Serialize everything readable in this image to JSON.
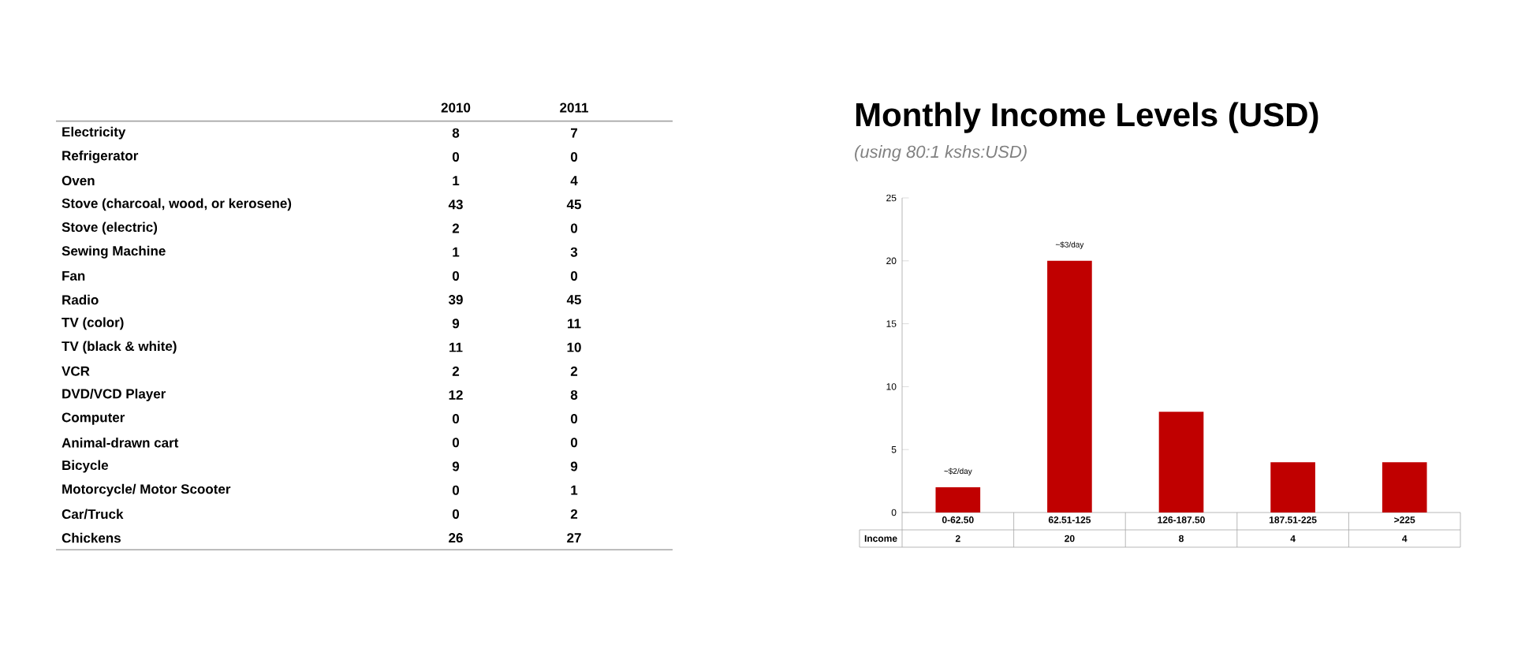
{
  "chart_data": [
    {
      "type": "heatmap",
      "categories": [
        "2010",
        "2011"
      ],
      "y_categories": [
        "Electricity",
        "Refrigerator",
        "Oven",
        "Stove (charcoal, wood, or kerosene)",
        "Stove (electric)",
        "Sewing Machine",
        "Fan",
        "Radio",
        "TV (color)",
        "TV (black & white)",
        "VCR",
        "DVD/VCD Player",
        "Computer",
        "Animal-drawn cart",
        "Bicycle",
        "Motorcycle/ Motor Scooter",
        "Car/Truck",
        "Chickens"
      ],
      "cells": [
        [
          8,
          7
        ],
        [
          0,
          0
        ],
        [
          1,
          4
        ],
        [
          43,
          45
        ],
        [
          2,
          0
        ],
        [
          1,
          3
        ],
        [
          0,
          0
        ],
        [
          39,
          45
        ],
        [
          9,
          11
        ],
        [
          11,
          10
        ],
        [
          2,
          2
        ],
        [
          12,
          8
        ],
        [
          0,
          0
        ],
        [
          0,
          0
        ],
        [
          9,
          9
        ],
        [
          0,
          1
        ],
        [
          0,
          2
        ],
        [
          26,
          27
        ]
      ],
      "data_labels": true
    },
    {
      "type": "bar",
      "title": "Monthly Income Levels (USD)",
      "subtitle": "(using 80:1 kshs:USD)",
      "categories": [
        "0-62.50",
        "62.51-125",
        "126-187.50",
        "187.51-225",
        ">225"
      ],
      "series": [
        {
          "name": "Income",
          "color": "#c00000",
          "values": [
            2,
            20,
            8,
            4,
            4
          ]
        }
      ],
      "ylim": [
        0,
        25
      ],
      "yticks": [
        0,
        5,
        10,
        15,
        20,
        25
      ],
      "data_labels": true,
      "annotations": [
        {
          "text": "~$2/day",
          "x": "0-62.50",
          "y": 2
        },
        {
          "text": "~$3/day",
          "x": "62.51-125",
          "y": 20
        }
      ]
    }
  ]
}
